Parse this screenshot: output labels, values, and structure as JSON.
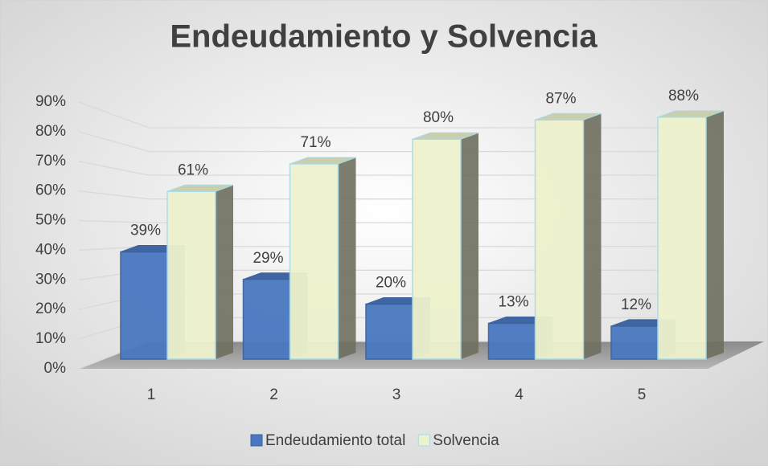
{
  "chart_data": {
    "type": "bar3d",
    "title": "Endeudamiento y Solvencia",
    "categories": [
      "1",
      "2",
      "3",
      "4",
      "5"
    ],
    "series": [
      {
        "name": "Endeudamiento total",
        "color": "#4a78c0",
        "values": [
          39,
          29,
          20,
          13,
          12
        ],
        "value_labels": [
          "39%",
          "29%",
          "20%",
          "13%",
          "12%"
        ]
      },
      {
        "name": "Solvencia",
        "color": "#eef2cc",
        "values": [
          61,
          71,
          80,
          87,
          88
        ],
        "value_labels": [
          "61%",
          "71%",
          "80%",
          "87%",
          "88%"
        ]
      }
    ],
    "ylim": [
      0,
      90
    ],
    "yticks": [
      {
        "value": 0,
        "label": "0%"
      },
      {
        "value": 10,
        "label": "10%"
      },
      {
        "value": 20,
        "label": "20%"
      },
      {
        "value": 30,
        "label": "30%"
      },
      {
        "value": 40,
        "label": "40%"
      },
      {
        "value": 50,
        "label": "50%"
      },
      {
        "value": 60,
        "label": "60%"
      },
      {
        "value": 70,
        "label": "70%"
      },
      {
        "value": 80,
        "label": "80%"
      },
      {
        "value": 90,
        "label": "90%"
      }
    ],
    "grid": true,
    "legend": "bottom"
  }
}
